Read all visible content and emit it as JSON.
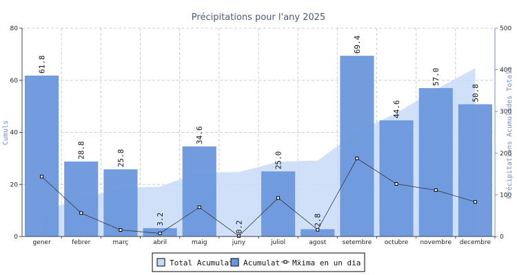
{
  "chart_data": {
    "type": "bar",
    "title": "Précipitations pour l'any 2025",
    "ylabel_left": "Cumuls",
    "ylabel_right": "Précipitations Acumulades Totals",
    "ylim_left": [
      0,
      80
    ],
    "yticks_left": [
      "0",
      "20",
      "40",
      "60",
      "80"
    ],
    "ylim_right": [
      0,
      500
    ],
    "yticks_right": [
      "0",
      "100",
      "200",
      "300",
      "400",
      "500"
    ],
    "categories": [
      "gener",
      "febrer",
      "març",
      "abril",
      "maig",
      "juny",
      "juliol",
      "agost",
      "setembre",
      "octubre",
      "novembre",
      "decembre"
    ],
    "series": [
      {
        "name": "Total Acumulat",
        "type": "area",
        "axis": "right",
        "color": "#c8daf7",
        "values": [
          61.8,
          90.6,
          116.4,
          119.6,
          154.2,
          154.4,
          179.4,
          182.2,
          251.6,
          296.2,
          353.2,
          404.0
        ]
      },
      {
        "name": "Acumulat",
        "type": "bar",
        "axis": "left",
        "color": "#6a97dc",
        "values": [
          61.8,
          28.8,
          25.8,
          3.2,
          34.6,
          0.2,
          25.0,
          2.8,
          69.4,
          44.6,
          57.0,
          50.8
        ],
        "labels": [
          "61.8",
          "28.8",
          "25.8",
          "3.2",
          "34.6",
          "0.2",
          "25.0",
          "2.8",
          "69.4",
          "44.6",
          "57.0",
          "50.8"
        ]
      },
      {
        "name": "Màxima en un dia",
        "type": "line",
        "axis": "left",
        "color": "#333333",
        "values": [
          23.0,
          9.0,
          2.5,
          1.2,
          11.2,
          0.2,
          14.8,
          2.6,
          30.0,
          20.2,
          17.8,
          13.3
        ]
      }
    ],
    "grid": true,
    "legend_position": "bottom"
  },
  "legend": {
    "area_label": "Total Acumulat",
    "bar_label": "Acumulat",
    "line_label": "Mẍima en un dia"
  }
}
